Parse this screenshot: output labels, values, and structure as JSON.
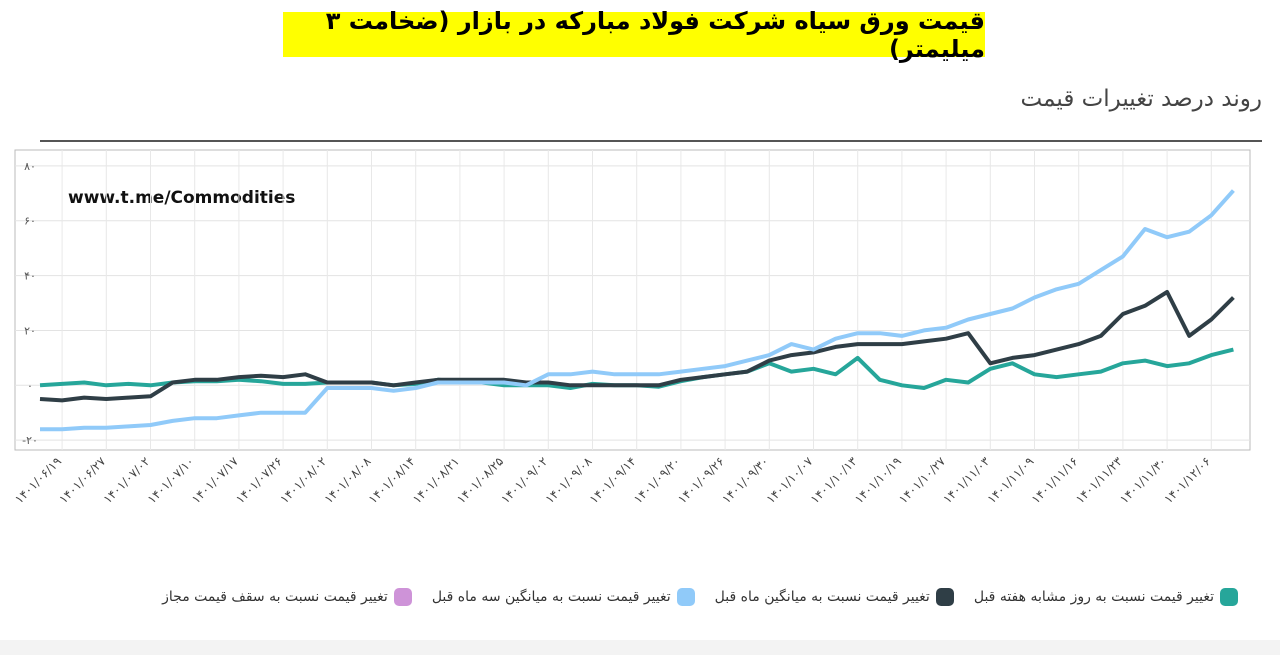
{
  "chart_data": {
    "type": "line",
    "title": "قیمت ورق سیاه شرکت فولاد مبارکه در بازار (ضخامت ۳ میلیمتر)",
    "subtitle": "روند درصد تغییرات قیمت",
    "watermark": "www.t.me/Commodities",
    "categories": [
      null,
      "۱۴۰۱/۰۶/۱۹",
      null,
      "۱۴۰۱/۰۶/۲۷",
      null,
      "۱۴۰۱/۰۷/۰۲",
      null,
      "۱۴۰۱/۰۷/۱۰",
      null,
      "۱۴۰۱/۰۷/۱۷",
      null,
      "۱۴۰۱/۰۷/۲۶",
      null,
      "۱۴۰۱/۰۸/۰۲",
      null,
      "۱۴۰۱/۰۸/۰۸",
      null,
      "۱۴۰۱/۰۸/۱۴",
      null,
      "۱۴۰۱/۰۸/۲۱",
      null,
      "۱۴۰۱/۰۸/۲۵",
      null,
      "۱۴۰۱/۰۹/۰۲",
      null,
      "۱۴۰۱/۰۹/۰۸",
      null,
      "۱۴۰۱/۰۹/۱۴",
      null,
      "۱۴۰۱/۰۹/۲۰",
      null,
      "۱۴۰۱/۰۹/۲۶",
      null,
      "۱۴۰۱/۰۹/۳۰",
      null,
      "۱۴۰۱/۱۰/۰۷",
      null,
      "۱۴۰۱/۱۰/۱۳",
      null,
      "۱۴۰۱/۱۰/۱۹",
      null,
      "۱۴۰۱/۱۰/۲۷",
      null,
      "۱۴۰۱/۱۱/۰۳",
      null,
      "۱۴۰۱/۱۱/۰۹",
      null,
      "۱۴۰۱/۱۱/۱۶",
      null,
      "۱۴۰۱/۱۱/۲۳",
      null,
      "۱۴۰۱/۱۱/۳۰",
      null,
      "۱۴۰۱/۱۲/۰۶",
      null
    ],
    "series": [
      {
        "name": "تغییر قیمت نسبت به روز مشابه هفته قبل",
        "color": "#26a69a",
        "values": [
          0,
          0.5,
          1,
          0,
          0.5,
          0,
          1,
          1.5,
          1.5,
          2,
          1.5,
          0.5,
          0.5,
          1,
          1,
          1,
          0,
          0.5,
          2,
          1.5,
          1,
          0,
          0,
          0,
          -1,
          0.5,
          0,
          0,
          -0.5,
          1.5,
          3,
          4,
          5,
          8,
          5,
          6,
          4,
          10,
          2,
          0,
          -1,
          2,
          1,
          6,
          8,
          4,
          3,
          4,
          5,
          8,
          9,
          7,
          8,
          11,
          13
        ]
      },
      {
        "name": "تغییر قیمت نسبت به میانگین ماه قبل",
        "color": "#2f3e46",
        "values": [
          -5,
          -5.5,
          -4.5,
          -5,
          -4.5,
          -4,
          1,
          2,
          2,
          3,
          3.5,
          3,
          4,
          1,
          1,
          1,
          0,
          1,
          2,
          2,
          2,
          2,
          1,
          1,
          0,
          0,
          0,
          0,
          0,
          2,
          3,
          4,
          5,
          9,
          11,
          12,
          14,
          15,
          15,
          15,
          16,
          17,
          19,
          8,
          10,
          11,
          13,
          15,
          18,
          26,
          29,
          34,
          18,
          24,
          32
        ]
      },
      {
        "name": "تغییر قیمت نسبت به میانگین سه ماه قبل",
        "color": "#90caf9",
        "values": [
          -16,
          -16,
          -15.5,
          -15.5,
          -15,
          -14.5,
          -13,
          -12,
          -12,
          -11,
          -10,
          -10,
          -10,
          -1,
          -1,
          -1,
          -2,
          -1,
          1,
          1,
          1,
          1,
          0,
          4,
          4,
          5,
          4,
          4,
          4,
          5,
          6,
          7,
          9,
          11,
          15,
          13,
          17,
          19,
          19,
          18,
          20,
          21,
          24,
          26,
          28,
          32,
          35,
          37,
          42,
          47,
          57,
          54,
          56,
          62,
          71
        ]
      },
      {
        "name": "تغییر قیمت نسبت به سقف قیمت مجاز",
        "color": "#ce93d8",
        "values": [
          null,
          null,
          null,
          null,
          null,
          null,
          null,
          null,
          null,
          null,
          null,
          null,
          null,
          null,
          null,
          null,
          null,
          null,
          null,
          null,
          null,
          null,
          null,
          null,
          null,
          null,
          null,
          null,
          null,
          null,
          null,
          null,
          null,
          null,
          null,
          null,
          null,
          null,
          null,
          null,
          null,
          null,
          null,
          null,
          null,
          null,
          null,
          null,
          null,
          null,
          null,
          null,
          null,
          null,
          null
        ]
      }
    ],
    "ylim": [
      -23.6,
      85.8
    ],
    "yticks": [
      {
        "value": -20,
        "label": "-۲۰"
      },
      {
        "value": 0,
        "label": "۰"
      },
      {
        "value": 20,
        "label": "۲۰"
      },
      {
        "value": 40,
        "label": "۴۰"
      },
      {
        "value": 60,
        "label": "۶۰"
      },
      {
        "value": 80,
        "label": "۸۰"
      }
    ],
    "grid": true
  }
}
